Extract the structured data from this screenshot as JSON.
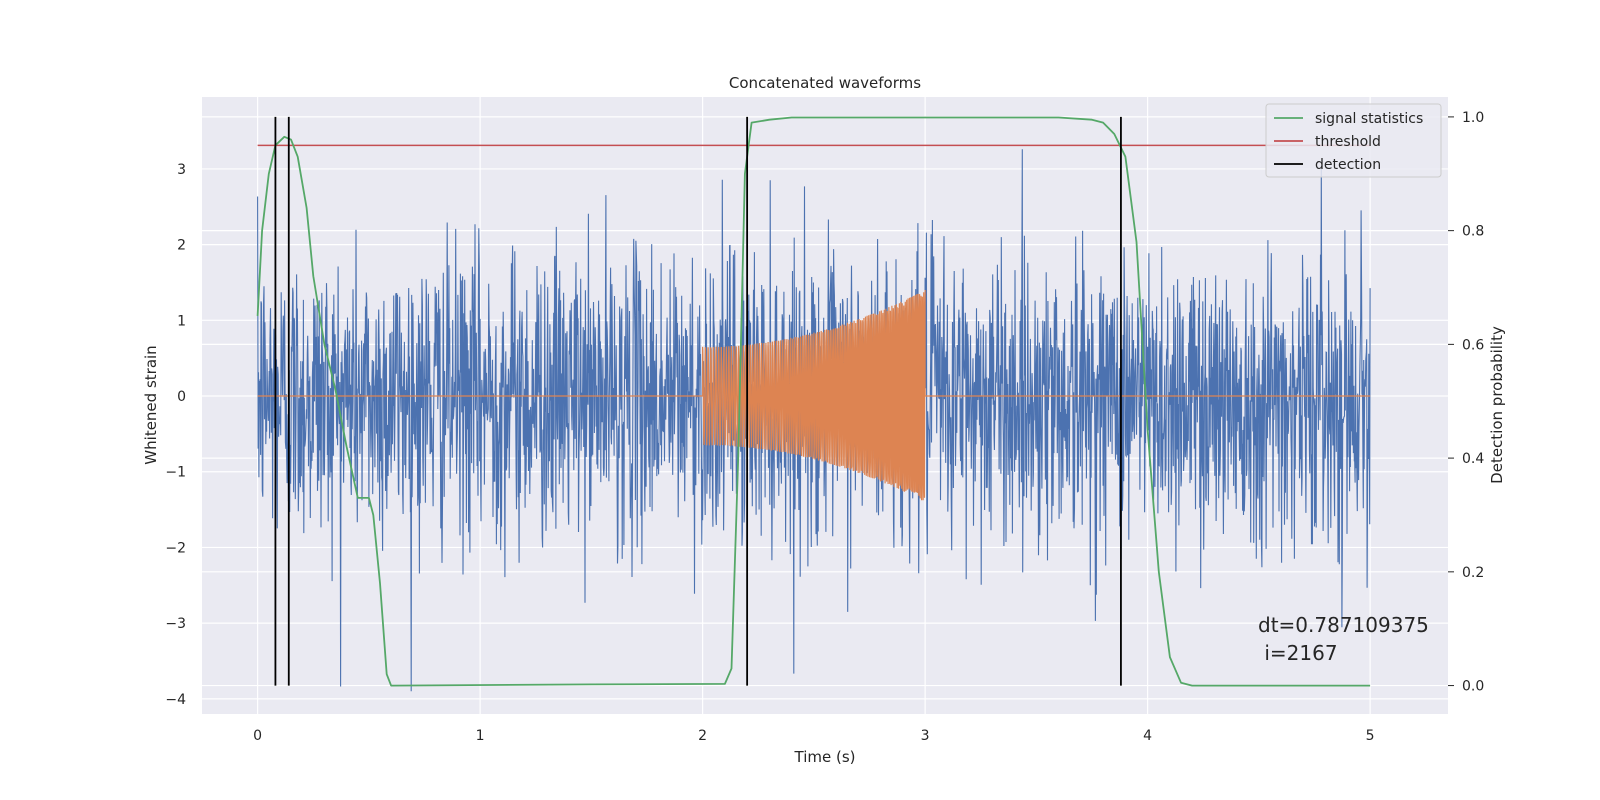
{
  "chart_data": {
    "type": "line",
    "title": "Concatenated waveforms",
    "xlabel": "Time (s)",
    "ylabel": "Whitened strain",
    "y2label": "Detection probability",
    "xlim": [
      -0.25,
      5.35
    ],
    "ylim": [
      -4.2,
      3.95
    ],
    "y2lim": [
      -0.05,
      1.035
    ],
    "x_ticks": [
      0,
      1,
      2,
      3,
      4,
      5
    ],
    "y_ticks": [
      -4,
      -3,
      -2,
      -1,
      0,
      1,
      2,
      3
    ],
    "y2_ticks": [
      0.0,
      0.2,
      0.4,
      0.6,
      0.8,
      1.0
    ],
    "x_tick_labels": [
      "0",
      "1",
      "2",
      "3",
      "4",
      "5"
    ],
    "y_tick_labels": [
      "−4",
      "−3",
      "−2",
      "−1",
      "0",
      "1",
      "2",
      "3"
    ],
    "y2_tick_labels": [
      "0.0",
      "0.2",
      "0.4",
      "0.6",
      "0.8",
      "1.0"
    ],
    "grid": true,
    "legend_position": "top-right",
    "series": [
      {
        "name": "",
        "color": "#4c72b0",
        "kind": "noise",
        "x_range": [
          0,
          5
        ],
        "y_extent": [
          -3.9,
          3.6
        ]
      },
      {
        "name": "",
        "color": "#dd8452",
        "kind": "chirp",
        "x_range": [
          2,
          3
        ],
        "amplitude_start": 0.65,
        "amplitude_end": 1.4,
        "outside_value": 0
      },
      {
        "name": "signal statistics",
        "color": "#55a868",
        "axis": "right",
        "points": [
          [
            0,
            0.65
          ],
          [
            0.02,
            0.8
          ],
          [
            0.05,
            0.9
          ],
          [
            0.08,
            0.95
          ],
          [
            0.12,
            0.965
          ],
          [
            0.15,
            0.96
          ],
          [
            0.18,
            0.93
          ],
          [
            0.22,
            0.84
          ],
          [
            0.25,
            0.72
          ],
          [
            0.3,
            0.6
          ],
          [
            0.35,
            0.52
          ],
          [
            0.4,
            0.42
          ],
          [
            0.45,
            0.33
          ],
          [
            0.5,
            0.33
          ],
          [
            0.52,
            0.3
          ],
          [
            0.55,
            0.18
          ],
          [
            0.58,
            0.02
          ],
          [
            0.6,
            0.0
          ],
          [
            1.5,
            0.002
          ],
          [
            2.1,
            0.003
          ],
          [
            2.13,
            0.03
          ],
          [
            2.16,
            0.4
          ],
          [
            2.19,
            0.9
          ],
          [
            2.22,
            0.99
          ],
          [
            2.3,
            0.995
          ],
          [
            2.4,
            0.999
          ],
          [
            3.6,
            0.999
          ],
          [
            3.75,
            0.995
          ],
          [
            3.8,
            0.99
          ],
          [
            3.85,
            0.97
          ],
          [
            3.9,
            0.93
          ],
          [
            3.95,
            0.78
          ],
          [
            4.0,
            0.45
          ],
          [
            4.05,
            0.2
          ],
          [
            4.1,
            0.05
          ],
          [
            4.15,
            0.005
          ],
          [
            4.2,
            0.0
          ],
          [
            5,
            0.0
          ]
        ]
      },
      {
        "name": "threshold",
        "color": "#c44e52",
        "axis": "right",
        "value": 0.95,
        "x_range": [
          0,
          5
        ]
      },
      {
        "name": "detection",
        "color": "#000000",
        "axis": "right",
        "x_values": [
          0.08,
          0.14,
          2.2,
          3.88
        ],
        "y_range": [
          0,
          1
        ]
      }
    ],
    "annotation": {
      "line1": "dt=0.787109375",
      "line2": " i=2167"
    }
  }
}
